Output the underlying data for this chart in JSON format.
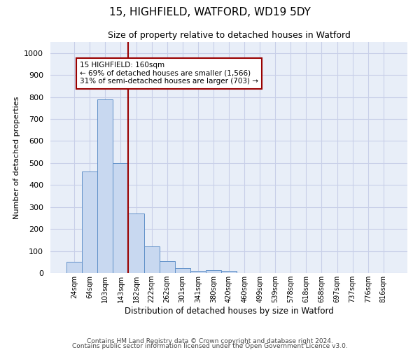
{
  "title_line1": "15, HIGHFIELD, WATFORD, WD19 5DY",
  "title_line2": "Size of property relative to detached houses in Watford",
  "xlabel": "Distribution of detached houses by size in Watford",
  "ylabel": "Number of detached properties",
  "bar_labels": [
    "24sqm",
    "64sqm",
    "103sqm",
    "143sqm",
    "182sqm",
    "222sqm",
    "262sqm",
    "301sqm",
    "341sqm",
    "380sqm",
    "420sqm",
    "460sqm",
    "499sqm",
    "539sqm",
    "578sqm",
    "618sqm",
    "658sqm",
    "697sqm",
    "737sqm",
    "776sqm",
    "816sqm"
  ],
  "bar_heights": [
    50,
    460,
    790,
    500,
    270,
    120,
    55,
    22,
    10,
    14,
    10,
    0,
    0,
    0,
    0,
    0,
    0,
    0,
    0,
    0,
    0
  ],
  "bar_color": "#c8d8f0",
  "bar_edge_color": "#6090c8",
  "vline_color": "#990000",
  "annotation_text": "15 HIGHFIELD: 160sqm\n← 69% of detached houses are smaller (1,566)\n31% of semi-detached houses are larger (703) →",
  "annotation_box_color": "white",
  "annotation_box_edge": "#990000",
  "ylim": [
    0,
    1050
  ],
  "yticks": [
    0,
    100,
    200,
    300,
    400,
    500,
    600,
    700,
    800,
    900,
    1000
  ],
  "grid_color": "#c8cfe8",
  "bg_color": "#e8eef8",
  "footer_line1": "Contains HM Land Registry data © Crown copyright and database right 2024.",
  "footer_line2": "Contains public sector information licensed under the Open Government Licence v3.0."
}
